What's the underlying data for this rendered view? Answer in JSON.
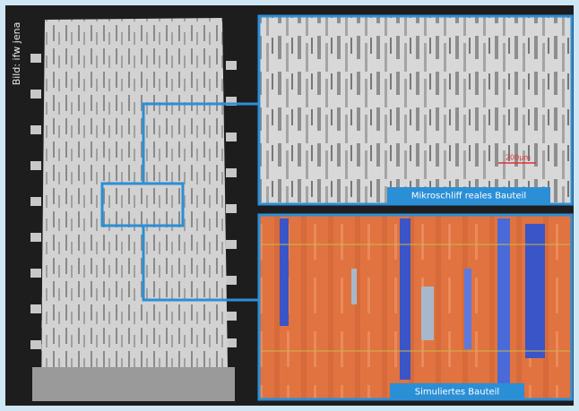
{
  "credit": "Bild: ifw jena",
  "panels": [
    {
      "caption": "Mikroschliff reales Bauteil",
      "scale_bar": "200µm"
    },
    {
      "caption": "Simuliertes Bauteil"
    }
  ]
}
